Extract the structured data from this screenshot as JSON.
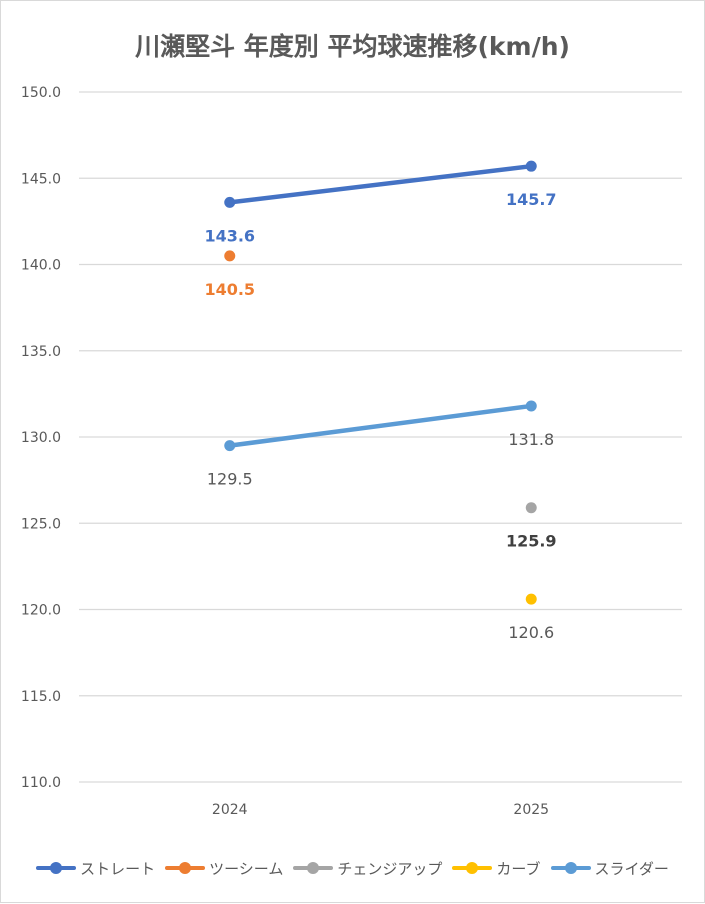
{
  "chart_data": {
    "type": "line",
    "title": "川瀬堅斗 年度別 平均球速推移(km/h)",
    "categories": [
      "2024",
      "2025"
    ],
    "ylim": [
      110.0,
      150.0
    ],
    "yticks": [
      "110.0",
      "115.0",
      "120.0",
      "125.0",
      "130.0",
      "135.0",
      "140.0",
      "145.0",
      "150.0"
    ],
    "grid": true,
    "legend_position": "bottom",
    "series": [
      {
        "name": "ストレート",
        "color": "#4472C4",
        "values": [
          143.6,
          145.7
        ],
        "labels": [
          "143.6",
          "145.7"
        ],
        "label_color": "#4472C4"
      },
      {
        "name": "ツーシーム",
        "color": "#ED7D31",
        "values": [
          140.5,
          null
        ],
        "labels": [
          "140.5",
          ""
        ],
        "label_color": "#ED7D31"
      },
      {
        "name": "チェンジアップ",
        "color": "#A5A5A5",
        "values": [
          null,
          125.9
        ],
        "labels": [
          "",
          "125.9"
        ],
        "label_color": "#404040"
      },
      {
        "name": "カーブ",
        "color": "#FFC000",
        "values": [
          null,
          120.6
        ],
        "labels": [
          "",
          "120.6"
        ],
        "label_color": "#595959"
      },
      {
        "name": "スライダー",
        "color": "#5B9BD5",
        "values": [
          129.5,
          131.8
        ],
        "labels": [
          "129.5",
          "131.8"
        ],
        "label_color": "#595959"
      }
    ]
  }
}
